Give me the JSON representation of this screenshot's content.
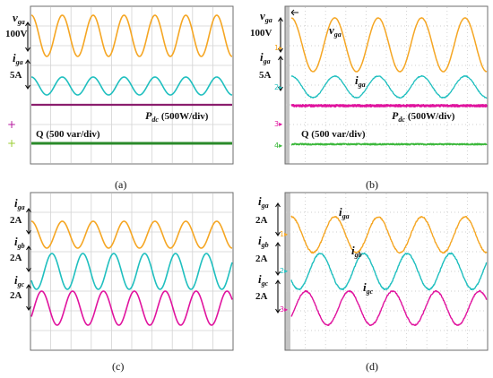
{
  "chart_data": [
    {
      "type": "line",
      "panel": "a",
      "caption": "(a)",
      "kind": "simulation",
      "grid": true,
      "series": [
        {
          "key": "vga",
          "kind": "sine",
          "color": "#f5a623",
          "cycles": 6.5,
          "amplitude": 1,
          "phase_deg": 90,
          "noise": 0
        },
        {
          "key": "iga",
          "kind": "sine",
          "color": "#1fbfbf",
          "cycles": 6.5,
          "amplitude": 1,
          "phase_deg": 90,
          "noise": 0
        },
        {
          "key": "pdc",
          "kind": "flat",
          "color": "#8b1e6e",
          "noise": 0
        },
        {
          "key": "q",
          "kind": "flat",
          "color": "#2a8a2a",
          "noise": 0
        }
      ],
      "labels": {
        "scale_v": "100V",
        "scale_i": "5A",
        "v_sym": "v",
        "v_sub": "ga",
        "i_sym": "i",
        "i_sub": "ga",
        "p_sym": "P",
        "p_sub": "dc",
        "p_scale": "(500W/div)",
        "q_text": "Q (500 var/div)"
      },
      "markers": [
        {
          "glyph": "+",
          "color": "#b5179e"
        },
        {
          "glyph": "+",
          "color": "#9acd32"
        }
      ]
    },
    {
      "type": "line",
      "panel": "b",
      "caption": "(b)",
      "kind": "experimental",
      "grid": true,
      "series": [
        {
          "key": "vga",
          "kind": "sine",
          "color": "#f5a623",
          "cycles": 4.5,
          "amplitude": 1,
          "phase_deg": 90,
          "noise": 0.02
        },
        {
          "key": "iga",
          "kind": "sine",
          "color": "#1fbfbf",
          "cycles": 4.5,
          "amplitude": 1,
          "phase_deg": 90,
          "noise": 0.12
        },
        {
          "key": "pdc",
          "kind": "flat",
          "color": "#e0139e",
          "noise": 0.5
        },
        {
          "key": "q",
          "kind": "flat",
          "color": "#3cb83c",
          "noise": 0.5
        }
      ],
      "labels": {
        "scale_v": "100V",
        "scale_i": "5A",
        "v_sym": "v",
        "v_sub": "ga",
        "i_sym": "i",
        "i_sub": "ga",
        "p_sym": "P",
        "p_sub": "dc",
        "p_scale": "(500W/div)",
        "q_text": "Q (500 var/div)"
      },
      "channel_markers": [
        "1",
        "2",
        "3",
        "4"
      ]
    },
    {
      "type": "line",
      "panel": "c",
      "caption": "(c)",
      "kind": "simulation",
      "grid": true,
      "series": [
        {
          "key": "iga",
          "kind": "sine",
          "color": "#f5a623",
          "cycles": 6.5,
          "amplitude": 1,
          "phase_deg": 90,
          "noise": 0
        },
        {
          "key": "igb",
          "kind": "sine",
          "color": "#1fbfbf",
          "cycles": 6.5,
          "amplitude": 1,
          "phase_deg": 210,
          "noise": 0
        },
        {
          "key": "igc",
          "kind": "sine",
          "color": "#e0139e",
          "cycles": 6.5,
          "amplitude": 1,
          "phase_deg": 330,
          "noise": 0
        }
      ],
      "labels": {
        "scale": "2A",
        "a_sym": "i",
        "a_sub": "ga",
        "b_sym": "i",
        "b_sub": "gb",
        "c_sym": "i",
        "c_sub": "gc"
      }
    },
    {
      "type": "line",
      "panel": "d",
      "caption": "(d)",
      "kind": "experimental",
      "grid": true,
      "series": [
        {
          "key": "iga",
          "kind": "sine",
          "color": "#f5a623",
          "cycles": 4.5,
          "amplitude": 1,
          "phase_deg": 90,
          "noise": 0.1
        },
        {
          "key": "igb",
          "kind": "sine",
          "color": "#1fbfbf",
          "cycles": 4.5,
          "amplitude": 1,
          "phase_deg": 210,
          "noise": 0.1
        },
        {
          "key": "igc",
          "kind": "sine",
          "color": "#e0139e",
          "cycles": 4.5,
          "amplitude": 1,
          "phase_deg": 330,
          "noise": 0.1
        }
      ],
      "labels": {
        "scale": "2A",
        "a_sym": "i",
        "a_sub": "ga",
        "b_sym": "i",
        "b_sub": "gb",
        "c_sym": "i",
        "c_sub": "gc"
      },
      "channel_markers": [
        "1",
        "2",
        "3"
      ]
    }
  ]
}
